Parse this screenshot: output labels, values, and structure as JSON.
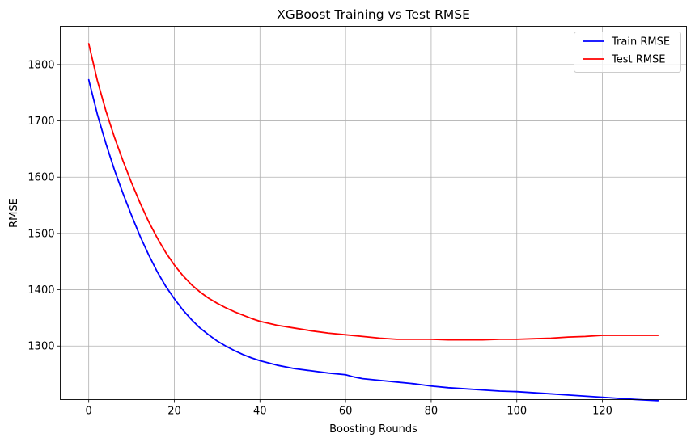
{
  "chart_data": {
    "type": "line",
    "title": "XGBoost Training vs Test RMSE",
    "xlabel": "Boosting Rounds",
    "ylabel": "RMSE",
    "xlim": [
      -6.65,
      139.65
    ],
    "ylim": [
      1204.9,
      1868.0
    ],
    "xticks": [
      0,
      20,
      40,
      60,
      80,
      100,
      120
    ],
    "yticks": [
      1300,
      1400,
      1500,
      1600,
      1700,
      1800
    ],
    "grid": true,
    "legend_position": "top-right",
    "series": [
      {
        "name": "Train RMSE",
        "color": "#0000ff",
        "points": [
          [
            0,
            1773
          ],
          [
            2,
            1712
          ],
          [
            4,
            1660
          ],
          [
            6,
            1613
          ],
          [
            8,
            1571
          ],
          [
            10,
            1532
          ],
          [
            12,
            1495
          ],
          [
            14,
            1462
          ],
          [
            16,
            1432
          ],
          [
            18,
            1406
          ],
          [
            20,
            1384
          ],
          [
            22,
            1364
          ],
          [
            24,
            1347
          ],
          [
            26,
            1332
          ],
          [
            28,
            1320
          ],
          [
            30,
            1309
          ],
          [
            32,
            1300
          ],
          [
            34,
            1292
          ],
          [
            36,
            1285
          ],
          [
            38,
            1279
          ],
          [
            40,
            1274
          ],
          [
            44,
            1266
          ],
          [
            48,
            1260
          ],
          [
            52,
            1256
          ],
          [
            56,
            1252
          ],
          [
            60,
            1249
          ],
          [
            62,
            1245
          ],
          [
            64,
            1242
          ],
          [
            68,
            1239
          ],
          [
            72,
            1236
          ],
          [
            76,
            1233
          ],
          [
            80,
            1229
          ],
          [
            84,
            1226
          ],
          [
            88,
            1224
          ],
          [
            92,
            1222
          ],
          [
            96,
            1220
          ],
          [
            100,
            1219
          ],
          [
            104,
            1217
          ],
          [
            108,
            1215
          ],
          [
            112,
            1213
          ],
          [
            116,
            1211
          ],
          [
            120,
            1209
          ],
          [
            124,
            1207
          ],
          [
            128,
            1205
          ],
          [
            133,
            1203
          ]
        ]
      },
      {
        "name": "Test RMSE",
        "color": "#ff0000",
        "points": [
          [
            0,
            1837
          ],
          [
            2,
            1772
          ],
          [
            4,
            1718
          ],
          [
            6,
            1671
          ],
          [
            8,
            1629
          ],
          [
            10,
            1590
          ],
          [
            12,
            1554
          ],
          [
            14,
            1521
          ],
          [
            16,
            1492
          ],
          [
            18,
            1466
          ],
          [
            20,
            1444
          ],
          [
            22,
            1425
          ],
          [
            24,
            1409
          ],
          [
            26,
            1396
          ],
          [
            28,
            1385
          ],
          [
            30,
            1376
          ],
          [
            32,
            1368
          ],
          [
            34,
            1361
          ],
          [
            36,
            1355
          ],
          [
            38,
            1349
          ],
          [
            40,
            1344
          ],
          [
            44,
            1337
          ],
          [
            48,
            1332
          ],
          [
            52,
            1327
          ],
          [
            56,
            1323
          ],
          [
            60,
            1320
          ],
          [
            64,
            1317
          ],
          [
            68,
            1314
          ],
          [
            72,
            1312
          ],
          [
            76,
            1312
          ],
          [
            80,
            1312
          ],
          [
            84,
            1311
          ],
          [
            88,
            1311
          ],
          [
            92,
            1311
          ],
          [
            96,
            1312
          ],
          [
            100,
            1312
          ],
          [
            104,
            1313
          ],
          [
            108,
            1314
          ],
          [
            112,
            1316
          ],
          [
            116,
            1317
          ],
          [
            120,
            1319
          ],
          [
            124,
            1319
          ],
          [
            128,
            1319
          ],
          [
            133,
            1319
          ]
        ]
      }
    ]
  }
}
